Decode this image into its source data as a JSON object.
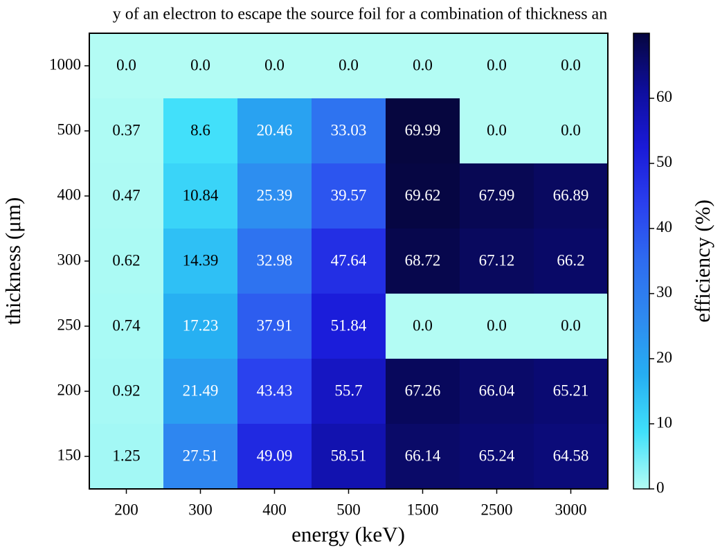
{
  "chart_data": {
    "type": "heatmap",
    "title": "y of an electron to escape the source foil for a combination of thickness an",
    "x_label": "energy (keV)",
    "y_label": "thickness (μm)",
    "colorbar_label": "efficiency (%)",
    "categories": [
      "200",
      "300",
      "400",
      "500",
      "1500",
      "2500",
      "3000"
    ],
    "y_categories": [
      "1000",
      "500",
      "400",
      "300",
      "250",
      "200",
      "150"
    ],
    "values": [
      [
        0,
        0,
        0,
        0,
        0,
        0,
        0
      ],
      [
        0.37,
        8.6,
        20.46,
        33.03,
        69.99,
        0,
        0
      ],
      [
        0.47,
        10.84,
        25.39,
        39.57,
        69.62,
        67.99,
        66.89
      ],
      [
        0.62,
        14.39,
        32.98,
        47.64,
        68.72,
        67.12,
        66.2
      ],
      [
        0.74,
        17.23,
        37.91,
        51.84,
        0,
        0,
        0
      ],
      [
        0.92,
        21.49,
        43.43,
        55.7,
        67.26,
        66.04,
        65.21
      ],
      [
        1.25,
        27.51,
        49.09,
        58.51,
        66.14,
        65.24,
        64.58
      ]
    ],
    "value_labels": [
      [
        "0.0",
        "0.0",
        "0.0",
        "0.0",
        "0.0",
        "0.0",
        "0.0"
      ],
      [
        "0.37",
        "8.6",
        "20.46",
        "33.03",
        "69.99",
        "0.0",
        "0.0"
      ],
      [
        "0.47",
        "10.84",
        "25.39",
        "39.57",
        "69.62",
        "67.99",
        "66.89"
      ],
      [
        "0.62",
        "14.39",
        "32.98",
        "47.64",
        "68.72",
        "67.12",
        "66.2"
      ],
      [
        "0.74",
        "17.23",
        "37.91",
        "51.84",
        "0.0",
        "0.0",
        "0.0"
      ],
      [
        "0.92",
        "21.49",
        "43.43",
        "55.7",
        "67.26",
        "66.04",
        "65.21"
      ],
      [
        "1.25",
        "27.51",
        "49.09",
        "58.51",
        "66.14",
        "65.24",
        "64.58"
      ]
    ],
    "clim": [
      0,
      69.99
    ],
    "cticks": [
      0,
      10,
      20,
      30,
      40,
      50,
      60
    ],
    "colormap": [
      "#b3fcf4",
      "#40e0fa",
      "#26aef2",
      "#2e8af0",
      "#2e6cf0",
      "#2a40ee",
      "#1a1ad8",
      "#0e0e9c",
      "#06063f"
    ]
  }
}
